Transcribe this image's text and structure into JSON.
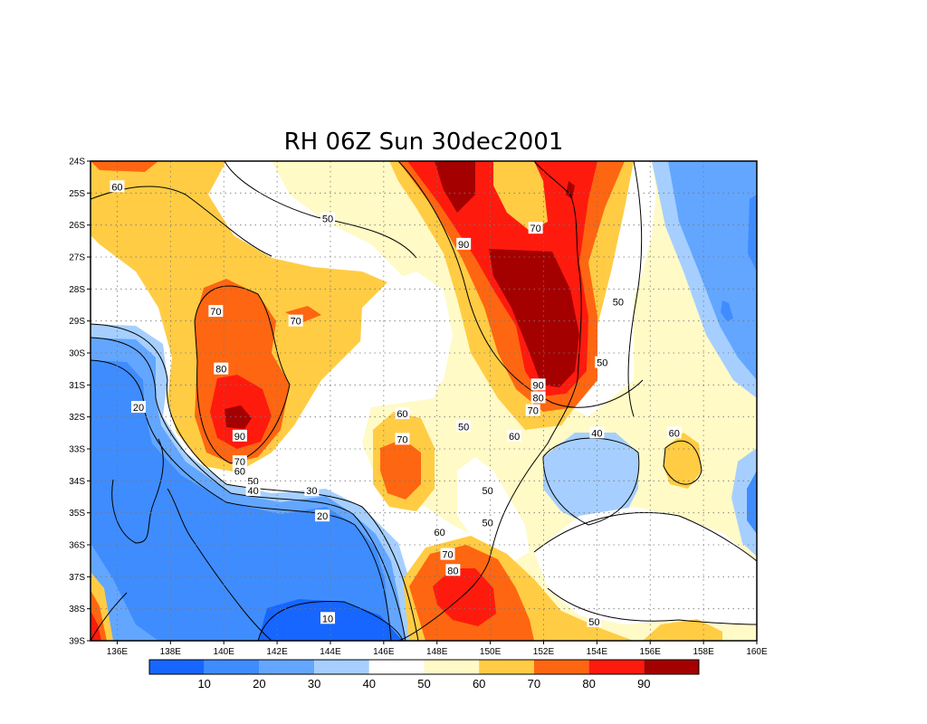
{
  "title": "RH 06Z Sun 30dec2001",
  "map": {
    "lon_range": [
      135,
      160
    ],
    "lat_range": [
      -39,
      -24
    ],
    "x_ticks": [
      {
        "lon": 136,
        "label": "136E"
      },
      {
        "lon": 138,
        "label": "138E"
      },
      {
        "lon": 140,
        "label": "140E"
      },
      {
        "lon": 142,
        "label": "142E"
      },
      {
        "lon": 144,
        "label": "144E"
      },
      {
        "lon": 146,
        "label": "146E"
      },
      {
        "lon": 148,
        "label": "148E"
      },
      {
        "lon": 150,
        "label": "150E"
      },
      {
        "lon": 152,
        "label": "152E"
      },
      {
        "lon": 154,
        "label": "154E"
      },
      {
        "lon": 156,
        "label": "156E"
      },
      {
        "lon": 158,
        "label": "158E"
      },
      {
        "lon": 160,
        "label": "160E"
      }
    ],
    "y_ticks": [
      {
        "lat": -24,
        "label": "24S"
      },
      {
        "lat": -25,
        "label": "25S"
      },
      {
        "lat": -26,
        "label": "26S"
      },
      {
        "lat": -27,
        "label": "27S"
      },
      {
        "lat": -28,
        "label": "28S"
      },
      {
        "lat": -29,
        "label": "29S"
      },
      {
        "lat": -30,
        "label": "30S"
      },
      {
        "lat": -31,
        "label": "31S"
      },
      {
        "lat": -32,
        "label": "32S"
      },
      {
        "lat": -33,
        "label": "33S"
      },
      {
        "lat": -34,
        "label": "34S"
      },
      {
        "lat": -35,
        "label": "35S"
      },
      {
        "lat": -36,
        "label": "36S"
      },
      {
        "lat": -37,
        "label": "37S"
      },
      {
        "lat": -38,
        "label": "38S"
      },
      {
        "lat": -39,
        "label": "39S"
      }
    ],
    "grid": true,
    "background_color": "#ffffff"
  },
  "colorbar": {
    "colors": [
      "#1666ff",
      "#3f8cff",
      "#63a6ff",
      "#a6cfff",
      "#ffffff",
      "#fffac6",
      "#ffcc44",
      "#ff6611",
      "#ff1a0e",
      "#a50000"
    ],
    "labels": [
      "10",
      "20",
      "30",
      "40",
      "50",
      "60",
      "70",
      "80",
      "90"
    ]
  },
  "fields": [
    {
      "name": "below-10",
      "color": "#1666ff",
      "shape": [
        [
          142.8,
          -39
        ],
        [
          143.2,
          -38.0
        ],
        [
          145.0,
          -37.9
        ],
        [
          146.8,
          -38.5
        ],
        [
          147.0,
          -39
        ]
      ]
    },
    {
      "name": "max-above-90",
      "color": "#a50000",
      "shape": [
        [
          149.3,
          -24
        ],
        [
          150.2,
          -24
        ],
        [
          150.2,
          -24.8
        ],
        [
          149.7,
          -25.3
        ]
      ]
    }
  ],
  "contour_labels": [
    {
      "lon": 136.0,
      "lat": -24.8,
      "text": "60"
    },
    {
      "lon": 143.9,
      "lat": -25.8,
      "text": "50"
    },
    {
      "lon": 139.7,
      "lat": -28.7,
      "text": "70"
    },
    {
      "lon": 142.7,
      "lat": -29.0,
      "text": "70"
    },
    {
      "lon": 149.0,
      "lat": -26.6,
      "text": "90"
    },
    {
      "lon": 151.7,
      "lat": -26.1,
      "text": "70"
    },
    {
      "lon": 154.8,
      "lat": -28.4,
      "text": "50"
    },
    {
      "lon": 154.2,
      "lat": -30.3,
      "text": "50"
    },
    {
      "lon": 139.9,
      "lat": -30.5,
      "text": "80"
    },
    {
      "lon": 136.8,
      "lat": -31.7,
      "text": "20"
    },
    {
      "lon": 151.8,
      "lat": -31.0,
      "text": "90"
    },
    {
      "lon": 151.8,
      "lat": -31.4,
      "text": "80"
    },
    {
      "lon": 151.6,
      "lat": -31.8,
      "text": "70"
    },
    {
      "lon": 146.7,
      "lat": -31.9,
      "text": "60"
    },
    {
      "lon": 149.0,
      "lat": -32.3,
      "text": "50"
    },
    {
      "lon": 150.9,
      "lat": -32.6,
      "text": "60"
    },
    {
      "lon": 154.0,
      "lat": -32.5,
      "text": "40"
    },
    {
      "lon": 156.9,
      "lat": -32.5,
      "text": "60"
    },
    {
      "lon": 140.6,
      "lat": -32.6,
      "text": "90"
    },
    {
      "lon": 146.7,
      "lat": -32.7,
      "text": "70"
    },
    {
      "lon": 140.6,
      "lat": -33.4,
      "text": "70"
    },
    {
      "lon": 140.6,
      "lat": -33.7,
      "text": "60"
    },
    {
      "lon": 141.1,
      "lat": -34.0,
      "text": "50"
    },
    {
      "lon": 141.1,
      "lat": -34.3,
      "text": "40"
    },
    {
      "lon": 143.3,
      "lat": -34.3,
      "text": "30"
    },
    {
      "lon": 149.9,
      "lat": -34.3,
      "text": "50"
    },
    {
      "lon": 143.7,
      "lat": -35.1,
      "text": "20"
    },
    {
      "lon": 149.9,
      "lat": -35.3,
      "text": "50"
    },
    {
      "lon": 148.1,
      "lat": -35.6,
      "text": "60"
    },
    {
      "lon": 148.4,
      "lat": -36.3,
      "text": "70"
    },
    {
      "lon": 148.6,
      "lat": -36.8,
      "text": "80"
    },
    {
      "lon": 143.9,
      "lat": -38.3,
      "text": "10"
    },
    {
      "lon": 153.9,
      "lat": -38.4,
      "text": "50"
    }
  ]
}
